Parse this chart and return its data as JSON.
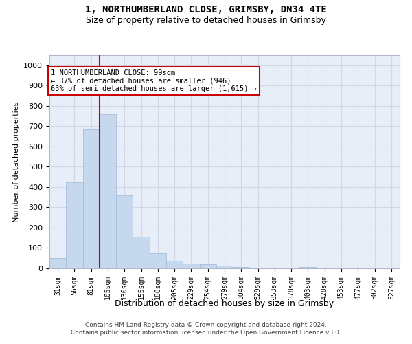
{
  "title": "1, NORTHUMBERLAND CLOSE, GRIMSBY, DN34 4TE",
  "subtitle": "Size of property relative to detached houses in Grimsby",
  "xlabel": "Distribution of detached houses by size in Grimsby",
  "ylabel": "Number of detached properties",
  "footer_line1": "Contains HM Land Registry data © Crown copyright and database right 2024.",
  "footer_line2": "Contains public sector information licensed under the Open Government Licence v3.0.",
  "categories": [
    "31sqm",
    "56sqm",
    "81sqm",
    "105sqm",
    "130sqm",
    "155sqm",
    "180sqm",
    "205sqm",
    "229sqm",
    "254sqm",
    "279sqm",
    "304sqm",
    "329sqm",
    "353sqm",
    "378sqm",
    "403sqm",
    "428sqm",
    "453sqm",
    "477sqm",
    "502sqm",
    "527sqm"
  ],
  "values": [
    50,
    425,
    685,
    760,
    360,
    155,
    75,
    37,
    25,
    20,
    12,
    8,
    5,
    5,
    0,
    7,
    0,
    5,
    5,
    0,
    0
  ],
  "bar_color": "#c5d8ed",
  "bar_edge_color": "#a0b8d8",
  "grid_color": "#d0d8e8",
  "background_color": "#e8eef8",
  "annotation_line1": "1 NORTHUMBERLAND CLOSE: 99sqm",
  "annotation_line2": "← 37% of detached houses are smaller (946)",
  "annotation_line3": "63% of semi-detached houses are larger (1,615) →",
  "annotation_box_color": "#ffffff",
  "annotation_box_edge_color": "#cc0000",
  "vline_x": 2.5,
  "vline_color": "#cc0000",
  "ylim": [
    0,
    1050
  ],
  "yticks": [
    0,
    100,
    200,
    300,
    400,
    500,
    600,
    700,
    800,
    900,
    1000
  ]
}
